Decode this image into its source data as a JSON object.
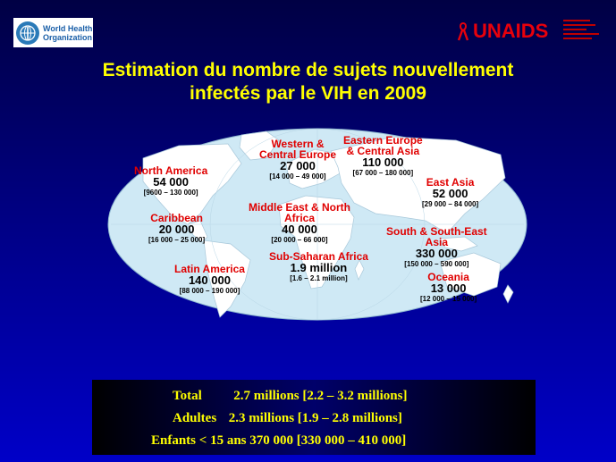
{
  "header": {
    "who_logo": {
      "icon": "who-emblem-icon",
      "line1": "World Health",
      "line2": "Organization"
    },
    "unaids_logo": {
      "icon": "red-ribbon-icon",
      "text": "UNAIDS"
    }
  },
  "title": {
    "line1": "Estimation du nombre de sujets nouvellement",
    "line2": "infectés par le VIH en 2009"
  },
  "regions": {
    "western_central_europe": {
      "name1": "Western &",
      "name2": "Central Europe",
      "value": "27 000",
      "range": "[14 000 – 49 000]"
    },
    "eastern_europe_central_asia": {
      "name1": "Eastern Europe",
      "name2": "& Central Asia",
      "value": "110 000",
      "range": "[67 000 – 180 000]"
    },
    "north_america": {
      "name1": "North America",
      "value": "54 000",
      "range": "[9600 – 130 000]"
    },
    "east_asia": {
      "name1": "East Asia",
      "value": "52 000",
      "range": "[29 000 – 84 000]"
    },
    "caribbean": {
      "name1": "Caribbean",
      "value": "20 000",
      "range": "[16 000 – 25 000]"
    },
    "middle_east_north_africa": {
      "name1": "Middle East & North",
      "name2": "Africa",
      "value": "40 000",
      "range": "[20 000 – 66 000]"
    },
    "south_southeast_asia": {
      "name1": "South & South-East",
      "name2": "Asia",
      "value": "330 000",
      "range": "[150 000 – 590 000]"
    },
    "sub_saharan_africa": {
      "name1": "Sub-Saharan Africa",
      "value": "1.9 million",
      "range": "[1.6 – 2.1 million]"
    },
    "latin_america": {
      "name1": "Latin America",
      "value": "140 000",
      "range": "[88 000 – 190 000]"
    },
    "oceania": {
      "name1": "Oceania",
      "value": "13 000",
      "range": "[12 000 – 15 000]"
    }
  },
  "totals": {
    "total": {
      "label": "Total",
      "value": "2.7 millions [2.2 – 3.2 millions]"
    },
    "adults": {
      "label": "Adultes",
      "value": "2.3 millions [1.9 – 2.8 millions]"
    },
    "children": {
      "label": "Enfants < 15 ans",
      "value": "370 000 [330 000 – 410 000]"
    }
  },
  "colors": {
    "ocean": "#cfe9f5",
    "land": "#ffffff",
    "title": "#ffff00",
    "region_name": "#e00000"
  }
}
